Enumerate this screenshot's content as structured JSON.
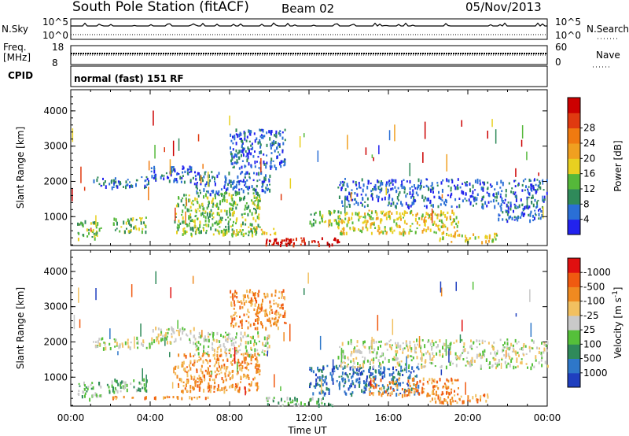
{
  "header": {
    "station": "South Pole Station (fitACF)",
    "beam": "Beam 02",
    "date": "05/Nov/2013"
  },
  "strip_labels": {
    "nsky": "N.Sky",
    "nsky_ticks": [
      "10^5",
      "10^0"
    ],
    "nsearch": "N.Search",
    "nsearch_ticks": [
      "10^5",
      "10^0"
    ],
    "freq": "Freq.",
    "freq_unit": "[MHz]",
    "freq_ticks": [
      "18",
      "8"
    ],
    "nave": "Nave",
    "nave_ticks": [
      "60",
      "0"
    ],
    "cpid": "CPID",
    "cpid_text": "normal (fast) 151 RF"
  },
  "time_axis": {
    "label": "Time UT",
    "ticks": [
      "00:00",
      "04:00",
      "08:00",
      "12:00",
      "16:00",
      "20:00",
      "00:00"
    ]
  },
  "chart_data": [
    {
      "type": "heatmap",
      "title": "",
      "ylabel": "Slant Range [km]",
      "yticks": [
        1000,
        2000,
        3000,
        4000
      ],
      "ylim": [
        180,
        4600
      ],
      "xlim": [
        0,
        24
      ],
      "colorbar": {
        "label": "Power [dB]",
        "ticks": [
          "4",
          "8",
          "12",
          "16",
          "20",
          "24",
          "28"
        ],
        "colors": [
          "#2222ee",
          "#2a6fd6",
          "#2f8a5a",
          "#55b83a",
          "#e8d020",
          "#f0a020",
          "#f07a10",
          "#e03a10",
          "#cc0000"
        ]
      },
      "echo_bands": [
        {
          "t0": 0.3,
          "t1": 1.5,
          "r0": 400,
          "r1": 900,
          "level": 3
        },
        {
          "t0": 1.1,
          "t1": 4.0,
          "r0": 1850,
          "r1": 2150,
          "level": 1
        },
        {
          "t0": 4.0,
          "t1": 6.2,
          "r0": 2000,
          "r1": 2450,
          "level": 1
        },
        {
          "t0": 6.2,
          "t1": 10.0,
          "r0": 1650,
          "r1": 2300,
          "level": 1
        },
        {
          "t0": 8.0,
          "t1": 10.8,
          "r0": 2400,
          "r1": 3500,
          "level": 1
        },
        {
          "t0": 2.0,
          "t1": 3.8,
          "r0": 600,
          "r1": 1000,
          "level": 3
        },
        {
          "t0": 5.2,
          "t1": 9.5,
          "r0": 500,
          "r1": 1700,
          "level": 3
        },
        {
          "t0": 7.5,
          "t1": 10.5,
          "r0": 500,
          "r1": 700,
          "level": 4
        },
        {
          "t0": 9.8,
          "t1": 11.0,
          "r0": 230,
          "r1": 400,
          "level": 8
        },
        {
          "t0": 11.0,
          "t1": 13.5,
          "r0": 220,
          "r1": 420,
          "level": 8
        },
        {
          "t0": 13.4,
          "t1": 19.5,
          "r0": 550,
          "r1": 1200,
          "level": 4
        },
        {
          "t0": 12.0,
          "t1": 13.6,
          "r0": 800,
          "r1": 1200,
          "level": 3
        },
        {
          "t0": 13.4,
          "t1": 24.0,
          "r0": 1300,
          "r1": 2100,
          "level": 1
        },
        {
          "t0": 18.5,
          "t1": 21.5,
          "r0": 300,
          "r1": 550,
          "level": 4
        },
        {
          "t0": 21.5,
          "t1": 23.8,
          "r0": 900,
          "r1": 1400,
          "level": 1
        }
      ]
    },
    {
      "type": "heatmap",
      "title": "",
      "ylabel": "Slant Range [km]",
      "yticks": [
        1000,
        2000,
        3000,
        4000
      ],
      "ylim": [
        180,
        4600
      ],
      "xlim": [
        0,
        24
      ],
      "colorbar": {
        "label": "Velocity [m s^-1]",
        "ticks": [
          "1000",
          "500",
          "100",
          "25",
          "-25",
          "-100",
          "-500",
          "-1000"
        ],
        "colors": [
          "#1f3fbf",
          "#2e77c9",
          "#2f8a5a",
          "#55c03a",
          "#c9c9c9",
          "#f2c060",
          "#f08a20",
          "#f05a10",
          "#e01010"
        ]
      },
      "echo_bands": [
        {
          "t0": 0.3,
          "t1": 1.5,
          "r0": 400,
          "r1": 900,
          "level": 3
        },
        {
          "t0": 1.1,
          "t1": 4.0,
          "r0": 1850,
          "r1": 2150,
          "level": 4
        },
        {
          "t0": 4.0,
          "t1": 6.2,
          "r0": 2000,
          "r1": 2450,
          "level": 4
        },
        {
          "t0": 6.2,
          "t1": 10.0,
          "r0": 1650,
          "r1": 2300,
          "level": 4
        },
        {
          "t0": 8.0,
          "t1": 10.8,
          "r0": 2400,
          "r1": 3500,
          "level": 6
        },
        {
          "t0": 1.8,
          "t1": 3.8,
          "r0": 600,
          "r1": 1000,
          "level": 3
        },
        {
          "t0": 5.2,
          "t1": 9.5,
          "r0": 600,
          "r1": 1700,
          "level": 6
        },
        {
          "t0": 2.0,
          "t1": 7.0,
          "r0": 430,
          "r1": 480,
          "level": 6
        },
        {
          "t0": 9.8,
          "t1": 13.5,
          "r0": 220,
          "r1": 450,
          "level": 3
        },
        {
          "t0": 12.0,
          "t1": 17.5,
          "r0": 550,
          "r1": 1350,
          "level": 1
        },
        {
          "t0": 15.0,
          "t1": 19.5,
          "r0": 500,
          "r1": 1000,
          "level": 6
        },
        {
          "t0": 13.4,
          "t1": 24.0,
          "r0": 1300,
          "r1": 2100,
          "level": 4
        },
        {
          "t0": 18.0,
          "t1": 21.0,
          "r0": 300,
          "r1": 550,
          "level": 6
        }
      ]
    }
  ]
}
